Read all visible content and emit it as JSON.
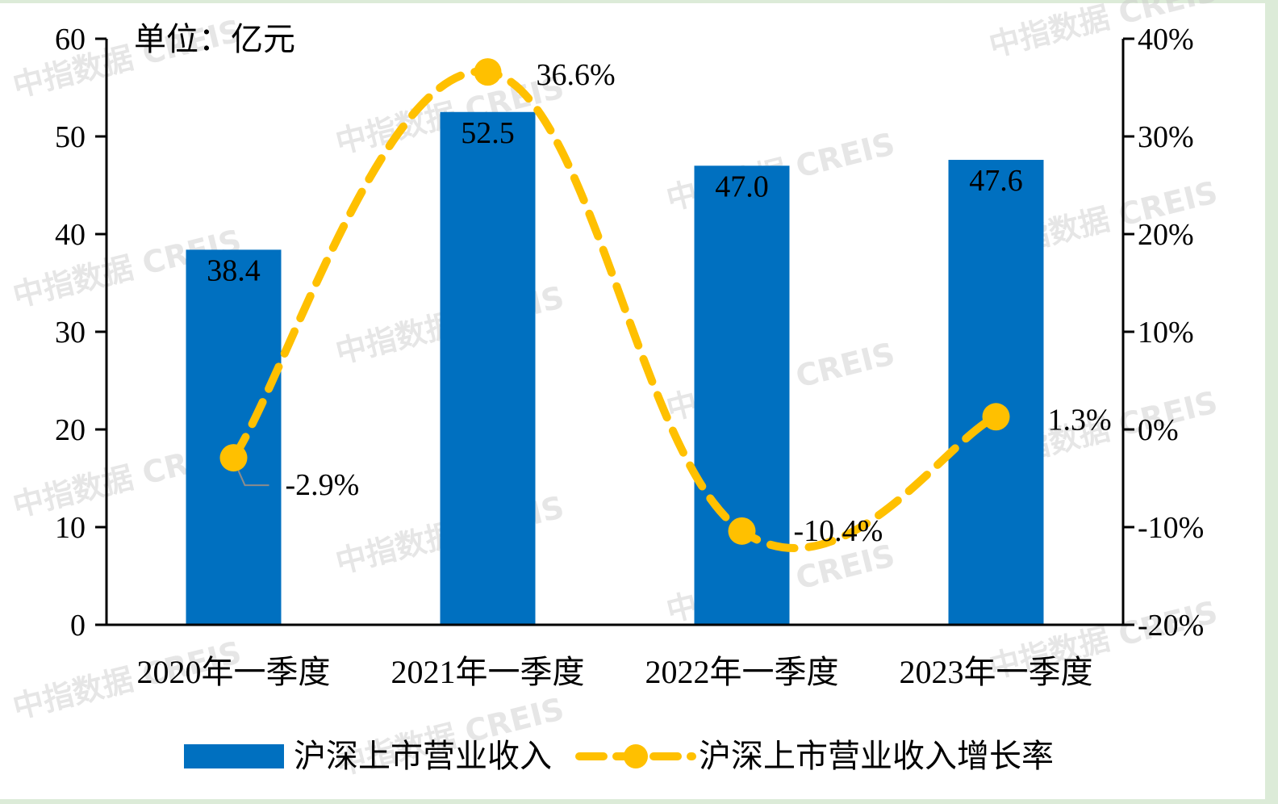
{
  "chart_data": {
    "type": "bar",
    "unit_label": "单位：亿元",
    "categories": [
      "2020年一季度",
      "2021年一季度",
      "2022年一季度",
      "2023年一季度"
    ],
    "series": [
      {
        "name": "沪深上市营业收入",
        "type": "bar",
        "axis": "left",
        "values": [
          38.4,
          52.5,
          47.0,
          47.6
        ],
        "labels": [
          "38.4",
          "52.5",
          "47.0",
          "47.6"
        ],
        "color": "#0070c0"
      },
      {
        "name": "沪深上市营业收入增长率",
        "type": "line",
        "axis": "right",
        "values": [
          -2.9,
          36.6,
          -10.4,
          1.3
        ],
        "labels": [
          "-2.9%",
          "36.6%",
          "-10.4%",
          "1.3%"
        ],
        "color": "#ffc000",
        "line_style": "dashed",
        "smooth": true
      }
    ],
    "y_left": {
      "ylim": [
        0,
        60
      ],
      "ticks": [
        "0",
        "10",
        "20",
        "30",
        "40",
        "50",
        "60"
      ]
    },
    "y_right": {
      "ylim": [
        -20,
        40
      ],
      "ticks": [
        "-20%",
        "-10%",
        "0%",
        "10%",
        "20%",
        "30%",
        "40%"
      ]
    },
    "grid": false,
    "legend_position": "bottom",
    "watermark": "中指数据 CREIS"
  }
}
